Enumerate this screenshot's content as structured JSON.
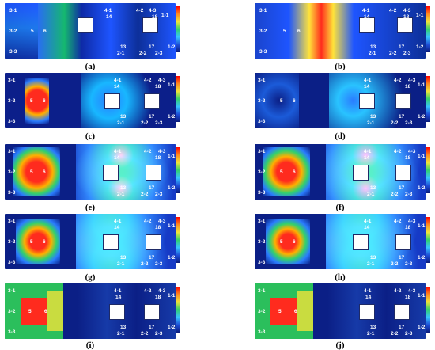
{
  "captions": [
    "(a)",
    "(b)",
    "(c)",
    "(d)",
    "(e)",
    "(f)",
    "(g)",
    "(h)",
    "(i)",
    "(j)"
  ],
  "labels": {
    "left": [
      "3-1",
      "3-2",
      "3-3",
      "5",
      "6"
    ],
    "right_top": [
      "4-1",
      "4-2",
      "4-3",
      "1-1",
      "14",
      "18"
    ],
    "right_bottom": [
      "2-1",
      "2-2",
      "2-3",
      "1-2",
      "13",
      "17"
    ]
  },
  "colors": {
    "blue_dark": "#0a1a7a",
    "blue": "#1e4fd8",
    "cyan": "#37c4ff",
    "green": "#33d16b",
    "yellow": "#f1e43a",
    "orange": "#ff8a1f",
    "red": "#e2221b"
  }
}
